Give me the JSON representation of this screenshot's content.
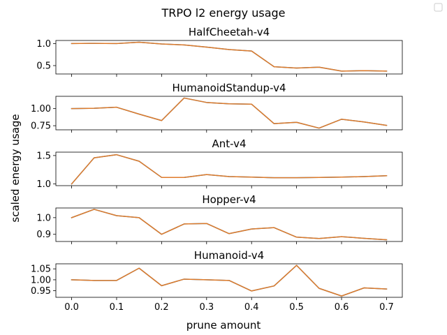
{
  "figure": {
    "suptitle": "TRPO l2 energy usage",
    "xlabel": "prune amount",
    "ylabel": "scaled energy usage"
  },
  "colors": {
    "line1": "#1f77b4",
    "line2": "#e07b2a"
  },
  "chart_data": [
    {
      "type": "line",
      "title": "HalfCheetah-v4",
      "x": [
        0.0,
        0.05,
        0.1,
        0.15,
        0.2,
        0.25,
        0.3,
        0.35,
        0.4,
        0.45,
        0.5,
        0.55,
        0.6,
        0.65,
        0.7
      ],
      "series": [
        {
          "values": [
            1.0,
            1.005,
            1.0,
            1.03,
            0.99,
            0.97,
            0.92,
            0.865,
            0.83,
            0.475,
            0.445,
            0.465,
            0.375,
            0.385,
            0.375
          ]
        },
        {
          "values": [
            1.0,
            1.005,
            1.0,
            1.03,
            0.99,
            0.97,
            0.92,
            0.865,
            0.83,
            0.475,
            0.445,
            0.465,
            0.375,
            0.385,
            0.375
          ]
        }
      ],
      "xlim": [
        -0.035,
        0.735
      ],
      "ylim": [
        0.31,
        1.07
      ],
      "yticks": [
        0.5,
        1.0
      ],
      "ytick_labels": [
        "0.5",
        "1.0"
      ]
    },
    {
      "type": "line",
      "title": "HumanoidStandup-v4",
      "x": [
        0.0,
        0.05,
        0.1,
        0.15,
        0.2,
        0.25,
        0.3,
        0.35,
        0.4,
        0.45,
        0.5,
        0.55,
        0.6,
        0.65,
        0.7
      ],
      "series": [
        {
          "values": [
            1.0,
            1.005,
            1.02,
            0.92,
            0.825,
            1.155,
            1.09,
            1.07,
            1.065,
            0.78,
            0.8,
            0.715,
            0.845,
            0.805,
            0.755
          ]
        },
        {
          "values": [
            1.0,
            1.005,
            1.02,
            0.92,
            0.825,
            1.155,
            1.09,
            1.07,
            1.065,
            0.78,
            0.8,
            0.715,
            0.845,
            0.805,
            0.755
          ]
        }
      ],
      "xlim": [
        -0.035,
        0.735
      ],
      "ylim": [
        0.69,
        1.18
      ],
      "yticks": [
        0.75,
        1.0
      ],
      "ytick_labels": [
        "0.75",
        "1.00"
      ]
    },
    {
      "type": "line",
      "title": "Ant-v4",
      "x": [
        0.0,
        0.05,
        0.1,
        0.15,
        0.2,
        0.25,
        0.3,
        0.35,
        0.4,
        0.45,
        0.5,
        0.55,
        0.6,
        0.65,
        0.7
      ],
      "series": [
        {
          "values": [
            1.0,
            1.46,
            1.515,
            1.4,
            1.115,
            1.115,
            1.165,
            1.13,
            1.12,
            1.11,
            1.11,
            1.115,
            1.12,
            1.13,
            1.145
          ]
        },
        {
          "values": [
            1.0,
            1.46,
            1.515,
            1.4,
            1.115,
            1.115,
            1.165,
            1.13,
            1.12,
            1.11,
            1.11,
            1.115,
            1.12,
            1.13,
            1.145
          ]
        }
      ],
      "xlim": [
        -0.035,
        0.735
      ],
      "ylim": [
        0.97,
        1.56
      ],
      "yticks": [
        1.0,
        1.5
      ],
      "ytick_labels": [
        "1.0",
        "1.5"
      ]
    },
    {
      "type": "line",
      "title": "Hopper-v4",
      "x": [
        0.0,
        0.05,
        0.1,
        0.15,
        0.2,
        0.25,
        0.3,
        0.35,
        0.4,
        0.45,
        0.5,
        0.55,
        0.6,
        0.65,
        0.7
      ],
      "series": [
        {
          "values": [
            1.0,
            1.05,
            1.012,
            1.0,
            0.9,
            0.962,
            0.965,
            0.904,
            0.932,
            0.94,
            0.883,
            0.875,
            0.886,
            0.876,
            0.867
          ]
        },
        {
          "values": [
            1.0,
            1.05,
            1.012,
            1.0,
            0.9,
            0.962,
            0.965,
            0.904,
            0.932,
            0.94,
            0.883,
            0.875,
            0.886,
            0.876,
            0.867
          ]
        }
      ],
      "xlim": [
        -0.035,
        0.735
      ],
      "ylim": [
        0.857,
        1.058
      ],
      "yticks": [
        0.9,
        1.0
      ],
      "ytick_labels": [
        "0.9",
        "1.0"
      ]
    },
    {
      "type": "line",
      "title": "Humanoid-v4",
      "x": [
        0.0,
        0.05,
        0.1,
        0.15,
        0.2,
        0.25,
        0.3,
        0.35,
        0.4,
        0.45,
        0.5,
        0.55,
        0.6,
        0.65,
        0.7
      ],
      "series": [
        {
          "values": [
            1.0,
            0.997,
            0.997,
            1.053,
            0.973,
            1.003,
            1.0,
            0.997,
            0.949,
            0.972,
            1.066,
            0.961,
            0.926,
            0.963,
            0.958
          ]
        },
        {
          "values": [
            1.0,
            0.997,
            0.997,
            1.053,
            0.973,
            1.003,
            1.0,
            0.997,
            0.949,
            0.972,
            1.066,
            0.961,
            0.926,
            0.963,
            0.958
          ]
        }
      ],
      "xlim": [
        -0.035,
        0.735
      ],
      "ylim": [
        0.92,
        1.073
      ],
      "yticks": [
        0.95,
        1.0,
        1.05
      ],
      "ytick_labels": [
        "0.95",
        "1.00",
        "1.05"
      ],
      "xticks": [
        0.0,
        0.1,
        0.2,
        0.3,
        0.4,
        0.5,
        0.6,
        0.7
      ],
      "xtick_labels": [
        "0.0",
        "0.1",
        "0.2",
        "0.3",
        "0.4",
        "0.5",
        "0.6",
        "0.7"
      ]
    }
  ]
}
